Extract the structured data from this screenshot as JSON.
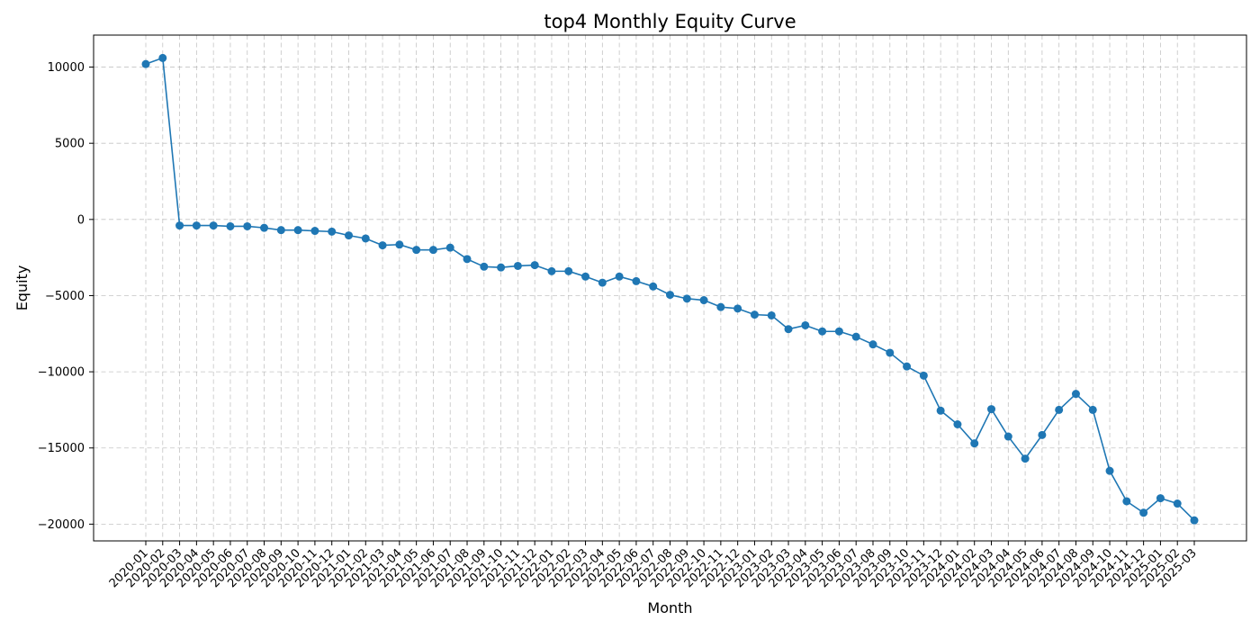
{
  "chart_data": {
    "type": "line",
    "title": "top4 Monthly Equity Curve",
    "xlabel": "Month",
    "ylabel": "Equity",
    "ylim": [
      -21100,
      12100
    ],
    "yticks": [
      10000,
      5000,
      0,
      -5000,
      -10000,
      -15000,
      -20000
    ],
    "ytick_labels": [
      "10000",
      "5000",
      "0",
      "−5000",
      "−10000",
      "−15000",
      "−20000"
    ],
    "grid": true,
    "line_color": "#1f77b4",
    "marker": "circle",
    "series": [
      {
        "x": [
          "2020-01",
          "2020-02",
          "2020-03",
          "2020-04",
          "2020-05",
          "2020-06",
          "2020-07",
          "2020-08",
          "2020-09",
          "2020-10",
          "2020-11",
          "2020-12",
          "2021-01",
          "2021-02",
          "2021-03",
          "2021-04",
          "2021-05",
          "2021-06",
          "2021-07",
          "2021-08",
          "2021-09",
          "2021-10",
          "2021-11",
          "2021-12",
          "2022-01",
          "2022-02",
          "2022-03",
          "2022-04",
          "2022-05",
          "2022-06",
          "2022-07",
          "2022-08",
          "2022-09",
          "2022-10",
          "2022-11",
          "2022-12",
          "2023-01",
          "2023-02",
          "2023-03",
          "2023-04",
          "2023-05",
          "2023-06",
          "2023-07",
          "2023-08",
          "2023-09",
          "2023-10",
          "2023-11",
          "2023-12",
          "2024-01",
          "2024-02",
          "2024-03",
          "2024-04",
          "2024-05",
          "2024-06",
          "2024-07",
          "2024-08",
          "2024-09",
          "2024-10",
          "2024-11",
          "2024-12",
          "2025-01",
          "2025-02",
          "2025-03"
        ],
        "y": [
          10200,
          10600,
          -400,
          -400,
          -400,
          -450,
          -450,
          -550,
          -700,
          -700,
          -750,
          -800,
          -1050,
          -1250,
          -1700,
          -1650,
          -2000,
          -2000,
          -1850,
          -2600,
          -3100,
          -3150,
          -3050,
          -3000,
          -3400,
          -3400,
          -3750,
          -4150,
          -3750,
          -4050,
          -4400,
          -4950,
          -5200,
          -5300,
          -5750,
          -5850,
          -6250,
          -6300,
          -7200,
          -6950,
          -7350,
          -7350,
          -7700,
          -8200,
          -8750,
          -9650,
          -10250,
          -12550,
          -13450,
          -14700,
          -12450,
          -14250,
          -15700,
          -14150,
          -12500,
          -11450,
          -12500,
          -16500,
          -18500,
          -19250,
          -18300,
          -18650,
          -19750
        ]
      }
    ]
  }
}
